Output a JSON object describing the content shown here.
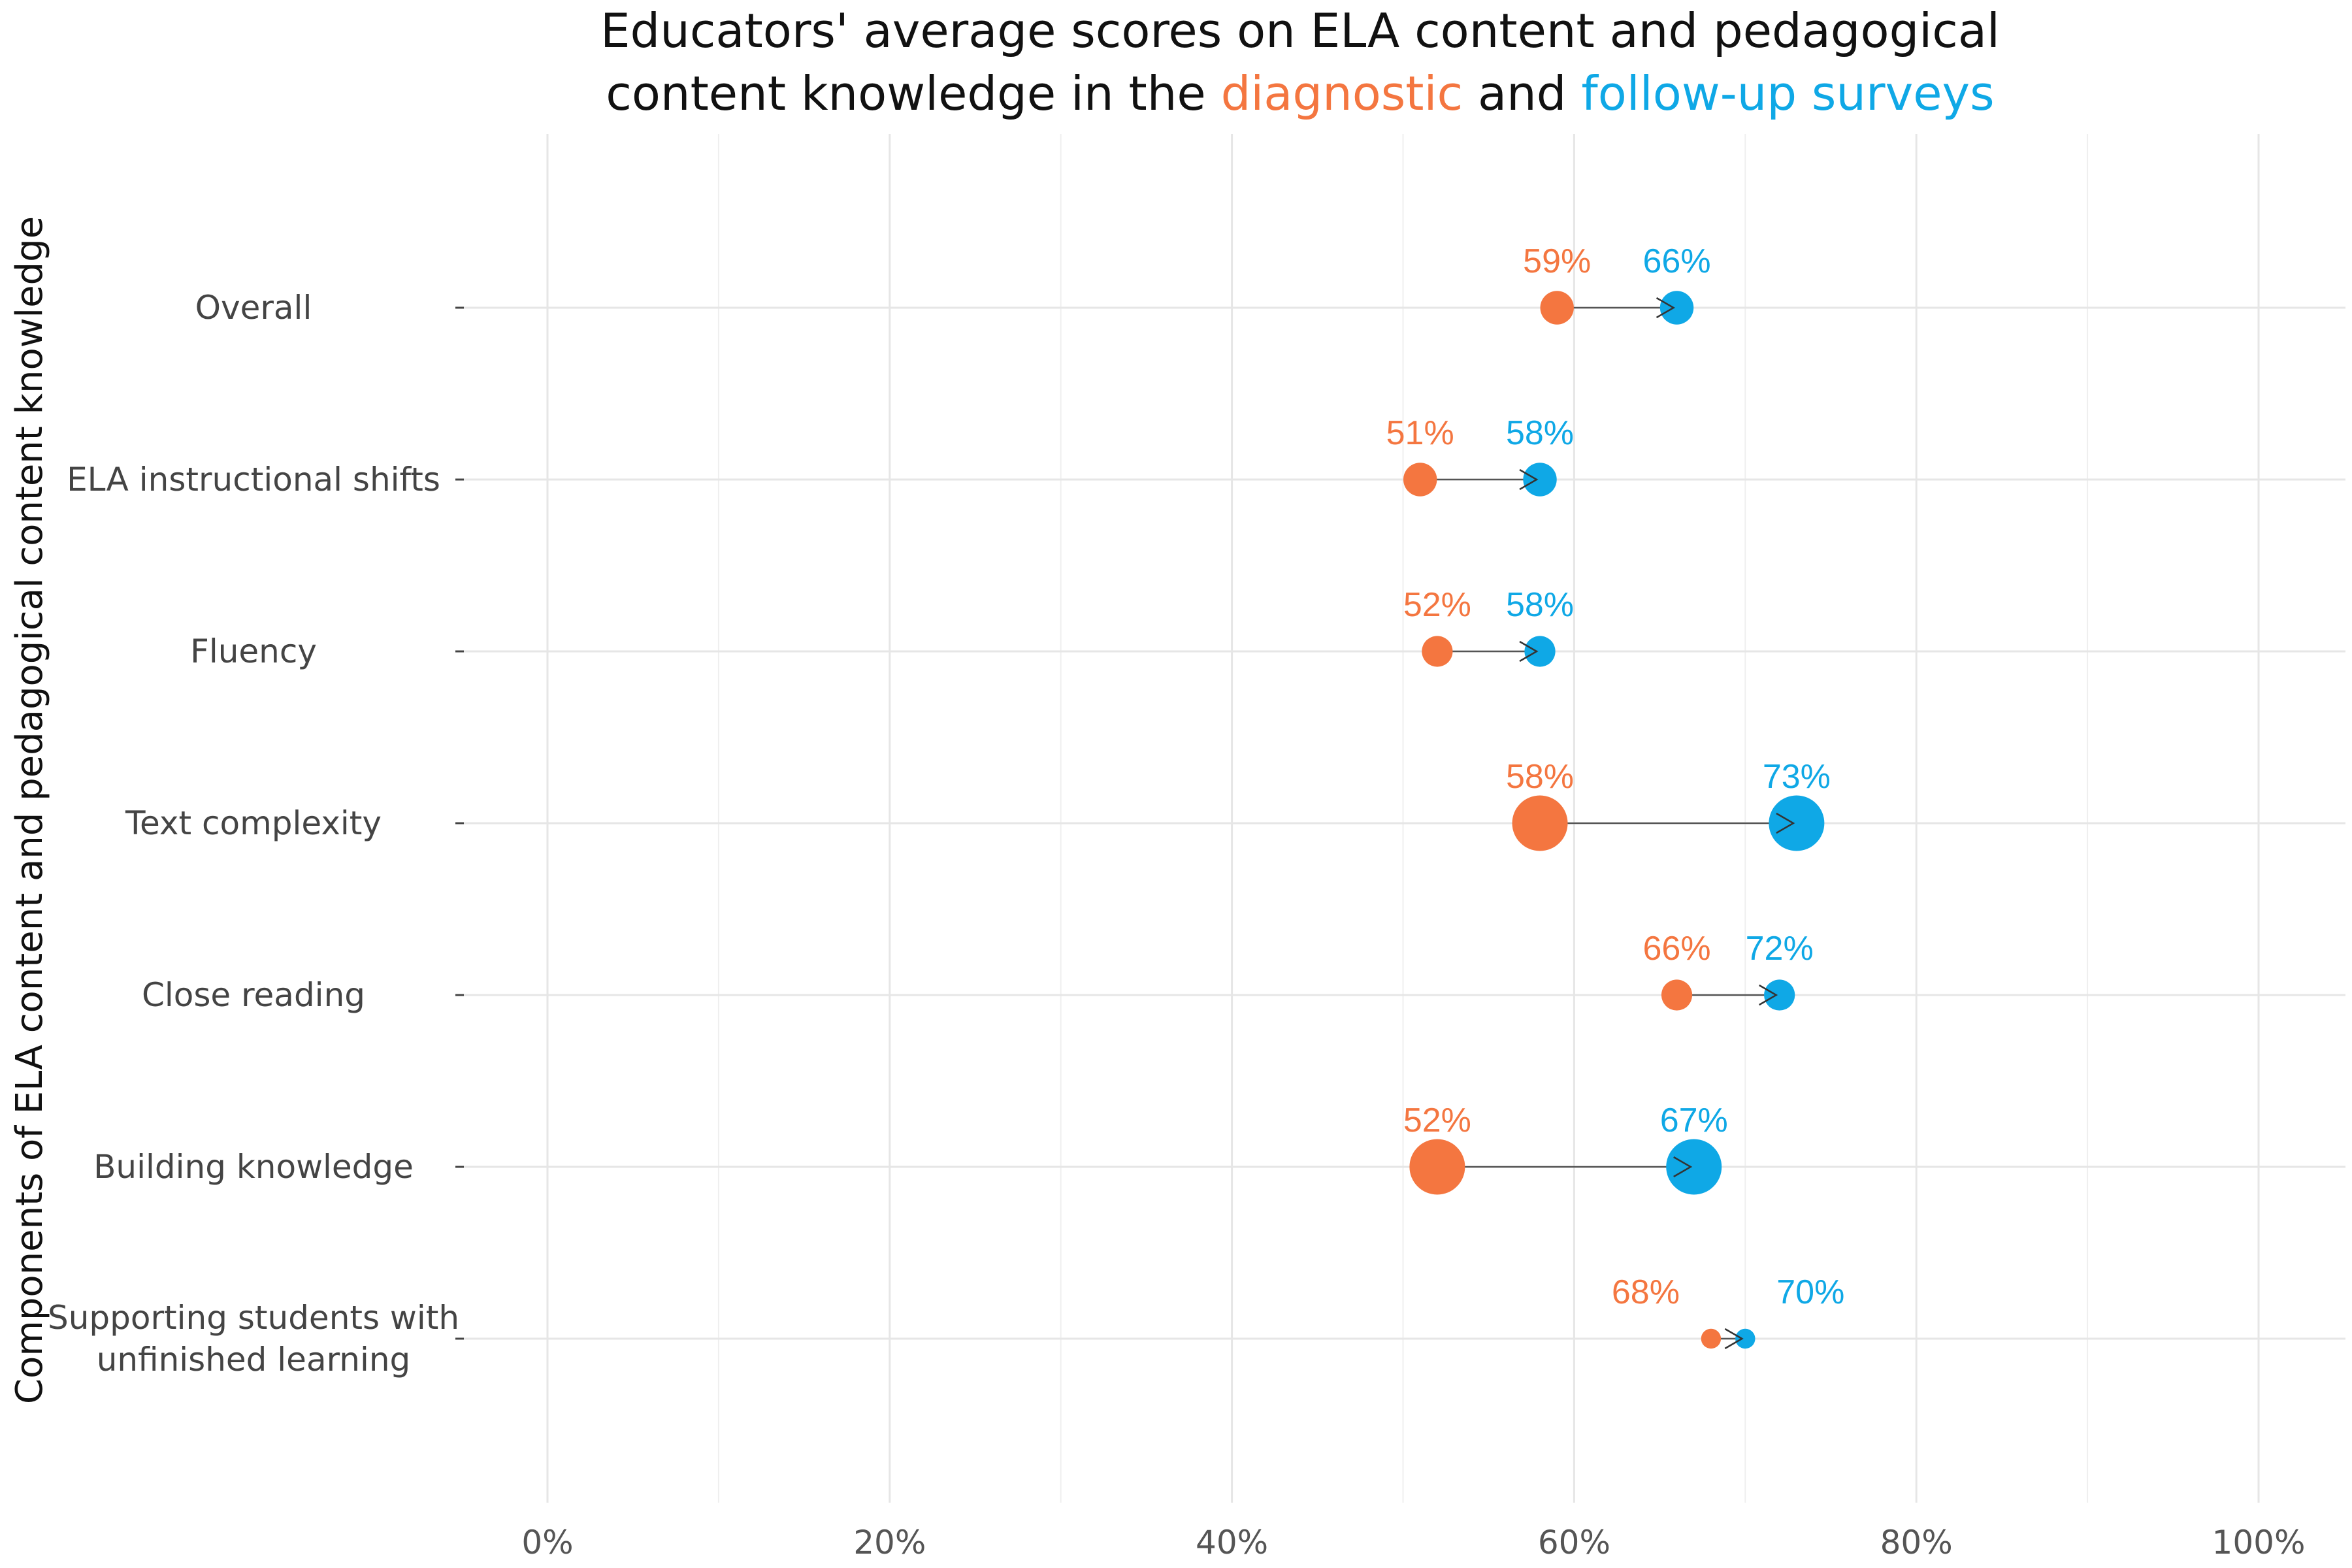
{
  "chart_data": {
    "type": "dumbbell",
    "title_parts": [
      "Educators' average scores on ELA content and pedagogical",
      "content knowledge in the ",
      "diagnostic",
      " and ",
      "follow-up surveys"
    ],
    "ylabel": "Components of ELA content and pedagogical content knowledge",
    "xlim": [
      0,
      100
    ],
    "x_ticks": [
      0,
      20,
      40,
      60,
      80,
      100
    ],
    "x_tick_labels": [
      "0%",
      "20%",
      "40%",
      "60%",
      "80%",
      "100%"
    ],
    "grid": true,
    "colors": {
      "diagnostic": "#F47640",
      "followup": "#0FA8E6",
      "arrow": "#555555"
    },
    "categories": [
      [
        "Overall"
      ],
      [
        "ELA instructional shifts"
      ],
      [
        "Fluency"
      ],
      [
        "Text complexity"
      ],
      [
        "Close reading"
      ],
      [
        "Building knowledge"
      ],
      [
        "Supporting students with",
        "unfinished learning"
      ]
    ],
    "series": [
      {
        "name": "diagnostic",
        "values": [
          59,
          51,
          52,
          58,
          66,
          52,
          68
        ],
        "labels": [
          "59%",
          "51%",
          "52%",
          "58%",
          "66%",
          "52%",
          "68%"
        ]
      },
      {
        "name": "follow-up surveys",
        "values": [
          66,
          58,
          58,
          73,
          72,
          67,
          70
        ],
        "labels": [
          "66%",
          "58%",
          "58%",
          "73%",
          "72%",
          "67%",
          "70%"
        ]
      }
    ]
  }
}
